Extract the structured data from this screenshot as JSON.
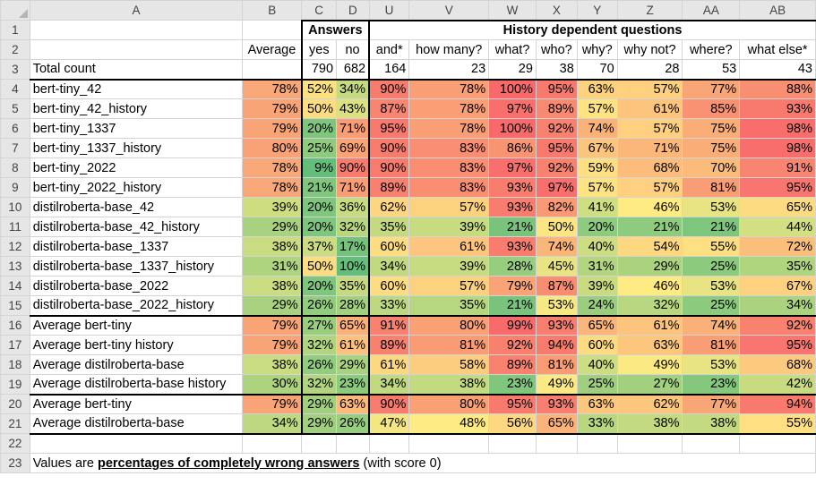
{
  "columns": [
    "A",
    "B",
    "C",
    "D",
    "U",
    "V",
    "W",
    "X",
    "Y",
    "Z",
    "AA",
    "AB"
  ],
  "rows": {
    "r1": {
      "answers_header": "Answers",
      "history_header": "History dependent questions"
    },
    "r2": {
      "labels": [
        "Average",
        "yes",
        "no",
        "and*",
        "how many?",
        "what?",
        "who?",
        "why?",
        "why not?",
        "where?",
        "what else*"
      ]
    },
    "r3": {
      "label": "Total count",
      "counts": [
        "790",
        "682",
        "164",
        "23",
        "29",
        "38",
        "70",
        "28",
        "53",
        "43"
      ]
    }
  },
  "data_rows": [
    {
      "label": "bert-tiny_42",
      "values": [
        "78%",
        "52%",
        "34%",
        "90%",
        "78%",
        "100%",
        "95%",
        "63%",
        "57%",
        "77%",
        "88%"
      ],
      "colors": [
        "#f8a778",
        "#fce183",
        "#c4da80",
        "#f87c6e",
        "#f99e75",
        "#f8696b",
        "#f87a6e",
        "#fdd27f",
        "#fed07f",
        "#f9a676",
        "#f88e72"
      ]
    },
    {
      "label": "bert-tiny_42_history",
      "values": [
        "79%",
        "50%",
        "43%",
        "87%",
        "78%",
        "97%",
        "89%",
        "57%",
        "61%",
        "85%",
        "93%"
      ],
      "colors": [
        "#f8a477",
        "#fddd82",
        "#dbe182",
        "#f88571",
        "#f99e75",
        "#f86f6d",
        "#f98a72",
        "#fee383",
        "#fdc47d",
        "#f89272",
        "#f87a6e"
      ]
    },
    {
      "label": "bert-tiny_1337",
      "values": [
        "79%",
        "20%",
        "71%",
        "95%",
        "78%",
        "100%",
        "92%",
        "74%",
        "57%",
        "75%",
        "98%"
      ],
      "colors": [
        "#f8a477",
        "#7ec57d",
        "#fa9c74",
        "#f87a6e",
        "#f99e75",
        "#f8696b",
        "#f88170",
        "#fbb279",
        "#fed07f",
        "#faad77",
        "#f86e6c"
      ]
    },
    {
      "label": "bert-tiny_1337_history",
      "values": [
        "80%",
        "25%",
        "69%",
        "90%",
        "83%",
        "86%",
        "95%",
        "67%",
        "71%",
        "75%",
        "98%"
      ],
      "colors": [
        "#f9a277",
        "#8ecb7e",
        "#fba375",
        "#f87c6e",
        "#f98e72",
        "#f99473",
        "#f87a6e",
        "#fcc57d",
        "#fbb67a",
        "#faad77",
        "#f86e6c"
      ]
    },
    {
      "label": "bert-tiny_2022",
      "values": [
        "78%",
        "9%",
        "90%",
        "90%",
        "83%",
        "97%",
        "92%",
        "59%",
        "68%",
        "70%",
        "91%"
      ],
      "colors": [
        "#f8a778",
        "#63be7b",
        "#f87c6e",
        "#f87c6e",
        "#f98e72",
        "#f86f6d",
        "#f88170",
        "#fee082",
        "#fcbc7b",
        "#fbbb7a",
        "#f88571"
      ]
    },
    {
      "label": "bert-tiny_2022_history",
      "values": [
        "78%",
        "21%",
        "71%",
        "89%",
        "83%",
        "93%",
        "97%",
        "57%",
        "57%",
        "81%",
        "95%"
      ],
      "colors": [
        "#f8a778",
        "#80c67d",
        "#fa9c74",
        "#f8806f",
        "#f98e72",
        "#f87d6f",
        "#f86f6d",
        "#fee383",
        "#fed07f",
        "#f99d74",
        "#f87570"
      ]
    },
    {
      "label": "distilroberta-base_42",
      "values": [
        "39%",
        "20%",
        "36%",
        "62%",
        "57%",
        "93%",
        "82%",
        "41%",
        "46%",
        "53%",
        "65%"
      ],
      "colors": [
        "#cfdd81",
        "#7ec57d",
        "#c8db80",
        "#fed580",
        "#fdd27f",
        "#f87d6f",
        "#f99a74",
        "#d0de82",
        "#ffeb84",
        "#e8e483",
        "#fddb81"
      ]
    },
    {
      "label": "distilroberta-base_42_history",
      "values": [
        "29%",
        "20%",
        "32%",
        "35%",
        "39%",
        "21%",
        "50%",
        "20%",
        "21%",
        "21%",
        "44%"
      ],
      "colors": [
        "#a8d27f",
        "#7ec57d",
        "#b8d67f",
        "#c5da80",
        "#c7db80",
        "#79c37c",
        "#fde582",
        "#8ecb7e",
        "#8fcb7e",
        "#7ec57d",
        "#d2df82"
      ]
    },
    {
      "label": "distilroberta-base_1337",
      "values": [
        "38%",
        "37%",
        "17%",
        "60%",
        "61%",
        "93%",
        "74%",
        "40%",
        "54%",
        "55%",
        "72%"
      ],
      "colors": [
        "#cadc81",
        "#cbdc81",
        "#74c27c",
        "#fedc82",
        "#fdc57d",
        "#f87d6f",
        "#fab679",
        "#cddd82",
        "#fed781",
        "#fee082",
        "#fcbf7b"
      ]
    },
    {
      "label": "distilroberta-base_1337_history",
      "values": [
        "31%",
        "50%",
        "10%",
        "34%",
        "39%",
        "28%",
        "45%",
        "31%",
        "29%",
        "25%",
        "35%"
      ],
      "colors": [
        "#aed47f",
        "#fddd82",
        "#64be7b",
        "#c1d980",
        "#c7db80",
        "#97cd7e",
        "#e9e483",
        "#b3d580",
        "#abd37f",
        "#8ccb7e",
        "#b0d57f"
      ]
    },
    {
      "label": "distilroberta-base_2022",
      "values": [
        "38%",
        "20%",
        "35%",
        "60%",
        "57%",
        "79%",
        "87%",
        "39%",
        "46%",
        "53%",
        "67%"
      ],
      "colors": [
        "#cadc81",
        "#7ec57d",
        "#c5da80",
        "#fedc82",
        "#fdd27f",
        "#f9a376",
        "#f98d72",
        "#c8db80",
        "#ffeb84",
        "#e8e483",
        "#fdd180"
      ]
    },
    {
      "label": "distilroberta-base_2022_history",
      "values": [
        "29%",
        "26%",
        "28%",
        "33%",
        "35%",
        "21%",
        "53%",
        "24%",
        "32%",
        "25%",
        "34%"
      ],
      "colors": [
        "#a8d27f",
        "#92cc7e",
        "#a3d07f",
        "#bdd880",
        "#b7d680",
        "#79c37c",
        "#f6e883",
        "#9ace7e",
        "#b8d780",
        "#8ccb7e",
        "#abd37f"
      ]
    },
    {
      "label": "Average bert-tiny",
      "values": [
        "79%",
        "27%",
        "65%",
        "91%",
        "80%",
        "99%",
        "93%",
        "65%",
        "61%",
        "74%",
        "92%"
      ],
      "colors": [
        "#f8a477",
        "#98ce7e",
        "#fbb077",
        "#f8816f",
        "#f9a075",
        "#f86b6c",
        "#f87e6f",
        "#fbb479",
        "#fdc47d",
        "#fab079",
        "#f8816f"
      ]
    },
    {
      "label": "Average bert-tiny history",
      "values": [
        "79%",
        "32%",
        "61%",
        "89%",
        "81%",
        "92%",
        "94%",
        "60%",
        "63%",
        "81%",
        "95%"
      ],
      "colors": [
        "#f8a477",
        "#b0d47f",
        "#fcc17c",
        "#f8806f",
        "#f99b74",
        "#f8806f",
        "#f87c6e",
        "#feda81",
        "#fdc67d",
        "#f99d74",
        "#f87570"
      ]
    },
    {
      "label": "Average distilroberta-base",
      "values": [
        "38%",
        "26%",
        "29%",
        "61%",
        "58%",
        "89%",
        "81%",
        "40%",
        "49%",
        "53%",
        "68%"
      ],
      "colors": [
        "#cadc81",
        "#92cc7e",
        "#a8d27f",
        "#fed781",
        "#fdcd7f",
        "#f8826f",
        "#f99c74",
        "#cddd82",
        "#fbe983",
        "#e8e483",
        "#fcca7e"
      ]
    },
    {
      "label": "Average distilroberta-base history",
      "values": [
        "30%",
        "32%",
        "23%",
        "34%",
        "38%",
        "23%",
        "49%",
        "25%",
        "27%",
        "23%",
        "42%"
      ],
      "colors": [
        "#add37f",
        "#b0d47f",
        "#8ccb7e",
        "#c1d980",
        "#c3da80",
        "#81c67d",
        "#fbe983",
        "#a0cf7f",
        "#a3d07f",
        "#85c87d",
        "#c8db80"
      ]
    },
    {
      "label": "Average bert-tiny",
      "values": [
        "79%",
        "29%",
        "63%",
        "90%",
        "80%",
        "95%",
        "93%",
        "63%",
        "62%",
        "77%",
        "94%"
      ],
      "colors": [
        "#f8a477",
        "#a2cf7f",
        "#fcb97a",
        "#f87c6e",
        "#f9a075",
        "#f87a6e",
        "#f87e6f",
        "#fdc67d",
        "#fdc67d",
        "#f9a676",
        "#f87a6e"
      ]
    },
    {
      "label": "Average distilroberta-base",
      "values": [
        "34%",
        "29%",
        "26%",
        "47%",
        "48%",
        "56%",
        "65%",
        "33%",
        "38%",
        "38%",
        "55%"
      ],
      "colors": [
        "#bdd880",
        "#a2cf7f",
        "#96cd7e",
        "#f4e783",
        "#ffeb84",
        "#fdd881",
        "#fbb37a",
        "#b8d780",
        "#c3da80",
        "#c3da80",
        "#fee082"
      ]
    }
  ],
  "note": {
    "prefix": "Values are ",
    "emphasis": "percentages of completely wrong answers",
    "suffix": " (with score 0)"
  },
  "row_numbers": [
    "1",
    "2",
    "3",
    "4",
    "5",
    "6",
    "7",
    "8",
    "9",
    "10",
    "11",
    "12",
    "13",
    "14",
    "15",
    "16",
    "17",
    "18",
    "19",
    "20",
    "21",
    "22",
    "23"
  ]
}
